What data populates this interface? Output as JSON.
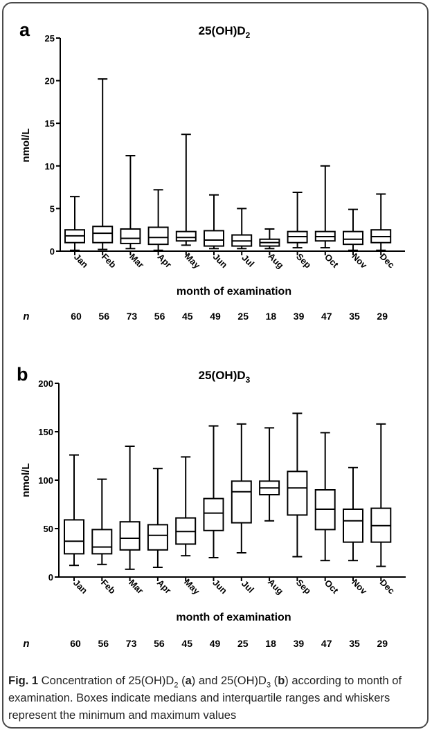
{
  "chart_data": [
    {
      "type": "box",
      "panel_label": "a",
      "title": "25(OH)D",
      "title_sub": "2",
      "ylabel": "nmol/L",
      "xlabel": "month of examination",
      "ylim": [
        0,
        25
      ],
      "yticks": [
        0,
        5,
        10,
        15,
        20,
        25
      ],
      "categories": [
        "Jan",
        "Feb",
        "Mar",
        "Apr",
        "May",
        "Jun",
        "Jul",
        "Aug",
        "Sep",
        "Oct",
        "Nov",
        "Dec"
      ],
      "n_label": "n",
      "n": [
        "60",
        "56",
        "73",
        "56",
        "45",
        "49",
        "25",
        "18",
        "39",
        "47",
        "35",
        "29"
      ],
      "boxes": [
        {
          "min": 0.1,
          "q1": 1.0,
          "median": 1.8,
          "q3": 2.5,
          "max": 6.4
        },
        {
          "min": 0.2,
          "q1": 1.0,
          "median": 2.1,
          "q3": 2.9,
          "max": 20.2
        },
        {
          "min": 0.3,
          "q1": 0.9,
          "median": 1.5,
          "q3": 2.6,
          "max": 11.2
        },
        {
          "min": 0.1,
          "q1": 0.8,
          "median": 1.6,
          "q3": 2.8,
          "max": 7.2
        },
        {
          "min": 0.7,
          "q1": 1.2,
          "median": 1.6,
          "q3": 2.3,
          "max": 13.7
        },
        {
          "min": 0.3,
          "q1": 0.6,
          "median": 1.3,
          "q3": 2.4,
          "max": 6.6
        },
        {
          "min": 0.3,
          "q1": 0.6,
          "median": 1.2,
          "q3": 1.9,
          "max": 5.0
        },
        {
          "min": 0.3,
          "q1": 0.6,
          "median": 1.0,
          "q3": 1.4,
          "max": 2.6
        },
        {
          "min": 0.4,
          "q1": 1.0,
          "median": 1.7,
          "q3": 2.3,
          "max": 6.9
        },
        {
          "min": 0.4,
          "q1": 1.2,
          "median": 1.7,
          "q3": 2.3,
          "max": 10.0
        },
        {
          "min": 0.1,
          "q1": 0.8,
          "median": 1.4,
          "q3": 2.3,
          "max": 4.9
        },
        {
          "min": 0.1,
          "q1": 1.0,
          "median": 1.7,
          "q3": 2.5,
          "max": 6.7
        }
      ]
    },
    {
      "type": "box",
      "panel_label": "b",
      "title": "25(OH)D",
      "title_sub": "3",
      "ylabel": "nmol/L",
      "xlabel": "month of examination",
      "ylim": [
        0,
        200
      ],
      "yticks": [
        0,
        50,
        100,
        150,
        200
      ],
      "categories": [
        "Jan",
        "Feb",
        "Mar",
        "Apr",
        "May",
        "Jun",
        "Jul",
        "Aug",
        "Sep",
        "Oct",
        "Nov",
        "Dec"
      ],
      "n_label": "n",
      "n": [
        "60",
        "56",
        "73",
        "56",
        "45",
        "49",
        "25",
        "18",
        "39",
        "47",
        "35",
        "29"
      ],
      "boxes": [
        {
          "min": 12,
          "q1": 24,
          "median": 37,
          "q3": 59,
          "max": 126
        },
        {
          "min": 13,
          "q1": 24,
          "median": 31,
          "q3": 49,
          "max": 101
        },
        {
          "min": 8,
          "q1": 28,
          "median": 40,
          "q3": 57,
          "max": 135
        },
        {
          "min": 10,
          "q1": 28,
          "median": 43,
          "q3": 54,
          "max": 112
        },
        {
          "min": 22,
          "q1": 34,
          "median": 47,
          "q3": 61,
          "max": 124
        },
        {
          "min": 20,
          "q1": 48,
          "median": 66,
          "q3": 81,
          "max": 156
        },
        {
          "min": 25,
          "q1": 56,
          "median": 88,
          "q3": 99,
          "max": 158
        },
        {
          "min": 58,
          "q1": 85,
          "median": 92,
          "q3": 99,
          "max": 154
        },
        {
          "min": 21,
          "q1": 64,
          "median": 92,
          "q3": 109,
          "max": 169
        },
        {
          "min": 17,
          "q1": 49,
          "median": 70,
          "q3": 90,
          "max": 149
        },
        {
          "min": 17,
          "q1": 36,
          "median": 58,
          "q3": 70,
          "max": 113
        },
        {
          "min": 11,
          "q1": 36,
          "median": 53,
          "q3": 71,
          "max": 158
        }
      ]
    }
  ],
  "caption": {
    "label": "Fig. 1",
    "t1": " Concentration of 25(OH)D",
    "s1": "2",
    "t2": " (",
    "b1": "a",
    "t3": ") and 25(OH)D",
    "s2": "3",
    "t4": " (",
    "b2": "b",
    "t5": ") according to month of examination. Boxes indicate medians and interquartile ranges and whiskers represent the minimum and maximum values"
  }
}
